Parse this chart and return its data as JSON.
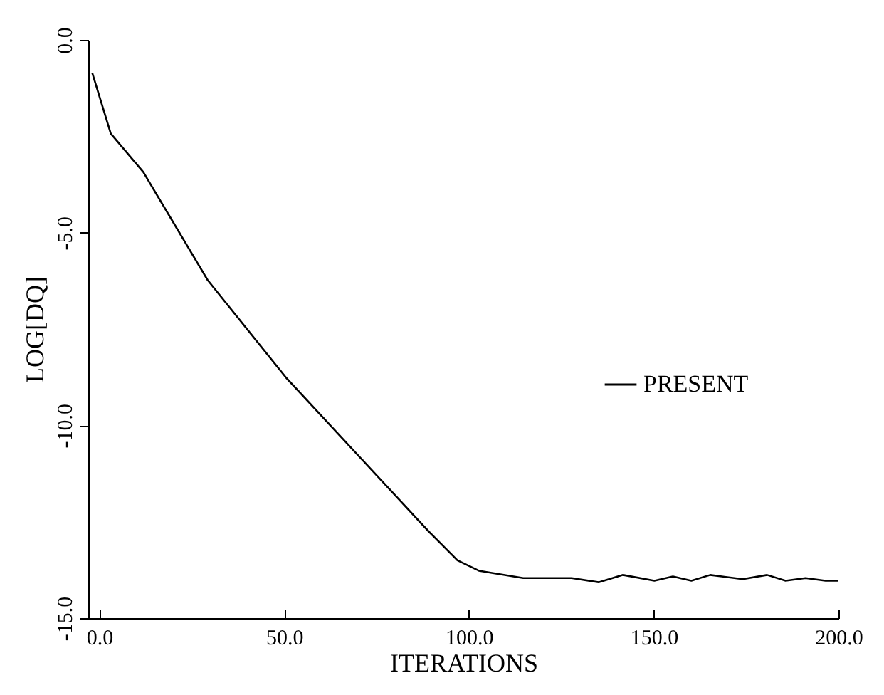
{
  "chart_data": {
    "type": "line",
    "xlabel": "ITERATIONS",
    "ylabel": "LOG[DQ]",
    "x": [
      -1.9,
      3.1,
      11.9,
      29.3,
      50.6,
      89.2,
      96.9,
      102.7,
      114.7,
      127.8,
      135.1,
      141.7,
      150.2,
      155.2,
      160.2,
      165.3,
      174.1,
      180.7,
      185.7,
      191.1,
      196.5,
      200
    ],
    "series": [
      {
        "name": "PRESENT",
        "color": "#000000",
        "values": [
          -0.86,
          -2.43,
          -3.43,
          -6.23,
          -8.77,
          -12.76,
          -13.5,
          -13.77,
          -13.96,
          -13.96,
          -14.07,
          -13.88,
          -14.03,
          -13.92,
          -14.03,
          -13.88,
          -13.99,
          -13.88,
          -14.03,
          -13.96,
          -14.03,
          -14.03
        ]
      }
    ],
    "xlim": [
      -3,
      200
    ],
    "xticks": [
      {
        "value": 0,
        "label": "0.0"
      },
      {
        "value": 50,
        "label": "50.0"
      },
      {
        "value": 100,
        "label": "100.0"
      },
      {
        "value": 150,
        "label": "150.0"
      },
      {
        "value": 200,
        "label": "200.0"
      }
    ],
    "ylim": [
      -15,
      0
    ],
    "yticks": [
      {
        "value": 0,
        "label": "0.0"
      },
      {
        "value": -5,
        "label": "-5.0"
      },
      {
        "value": -10,
        "label": "-10.0"
      },
      {
        "value": -15,
        "label": "-15.0"
      }
    ],
    "legend": "right",
    "grid": false,
    "marker": "none",
    "line_style": "solid"
  }
}
